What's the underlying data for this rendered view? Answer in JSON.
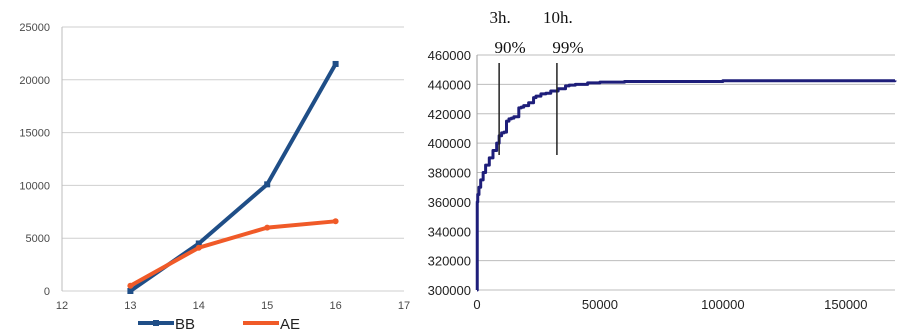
{
  "chart_data": [
    {
      "type": "line",
      "title": "",
      "xlabel": "",
      "ylabel": "",
      "xlim": [
        12,
        17
      ],
      "ylim": [
        0,
        25000
      ],
      "x_ticks": [
        12,
        13,
        14,
        15,
        16,
        17
      ],
      "y_ticks": [
        0,
        5000,
        10000,
        15000,
        20000,
        25000
      ],
      "grid": "horizontal",
      "legend": "bottom",
      "series": [
        {
          "name": "BB",
          "color": "#1f4e87",
          "x": [
            13,
            14,
            15,
            16
          ],
          "values": [
            0,
            4500,
            10100,
            21500
          ]
        },
        {
          "name": "AE",
          "color": "#f05a28",
          "x": [
            13,
            14,
            15,
            16
          ],
          "values": [
            500,
            4100,
            6000,
            6600
          ]
        }
      ]
    },
    {
      "type": "line",
      "title": "",
      "xlabel": "",
      "ylabel": "",
      "xlim": [
        0,
        170000
      ],
      "ylim": [
        300000,
        460000
      ],
      "x_ticks": [
        0,
        50000,
        100000,
        150000
      ],
      "y_ticks": [
        300000,
        320000,
        340000,
        360000,
        380000,
        400000,
        420000,
        440000,
        460000
      ],
      "grid": "horizontal",
      "legend": "none",
      "series": [
        {
          "color": "#1e1e7a",
          "x": [
            0,
            100,
            300,
            800,
            1500,
            2500,
            3500,
            5000,
            6500,
            8000,
            9000,
            10000,
            11000,
            12000,
            13000,
            14000,
            15000,
            17000,
            18000,
            19000,
            21000,
            23000,
            24000,
            26000,
            28000,
            30000,
            33000,
            36000,
            37500,
            40000,
            45000,
            50000,
            60000,
            70000,
            100000,
            150000,
            170000
          ],
          "values": [
            300000,
            360000,
            365000,
            370000,
            375000,
            380000,
            385000,
            390000,
            395000,
            400000,
            405000,
            407000,
            407500,
            415000,
            416500,
            417000,
            418000,
            424000,
            424500,
            425500,
            427500,
            431000,
            432000,
            433500,
            434000,
            435500,
            437000,
            439000,
            439500,
            440000,
            441000,
            441500,
            442000,
            442000,
            442500,
            442500,
            442700
          ]
        }
      ],
      "annotations": [
        {
          "x": 9000,
          "time_label": "3h.",
          "pct_label": "90%"
        },
        {
          "x": 32500,
          "time_label": "10h.",
          "pct_label": "99%"
        }
      ]
    }
  ]
}
